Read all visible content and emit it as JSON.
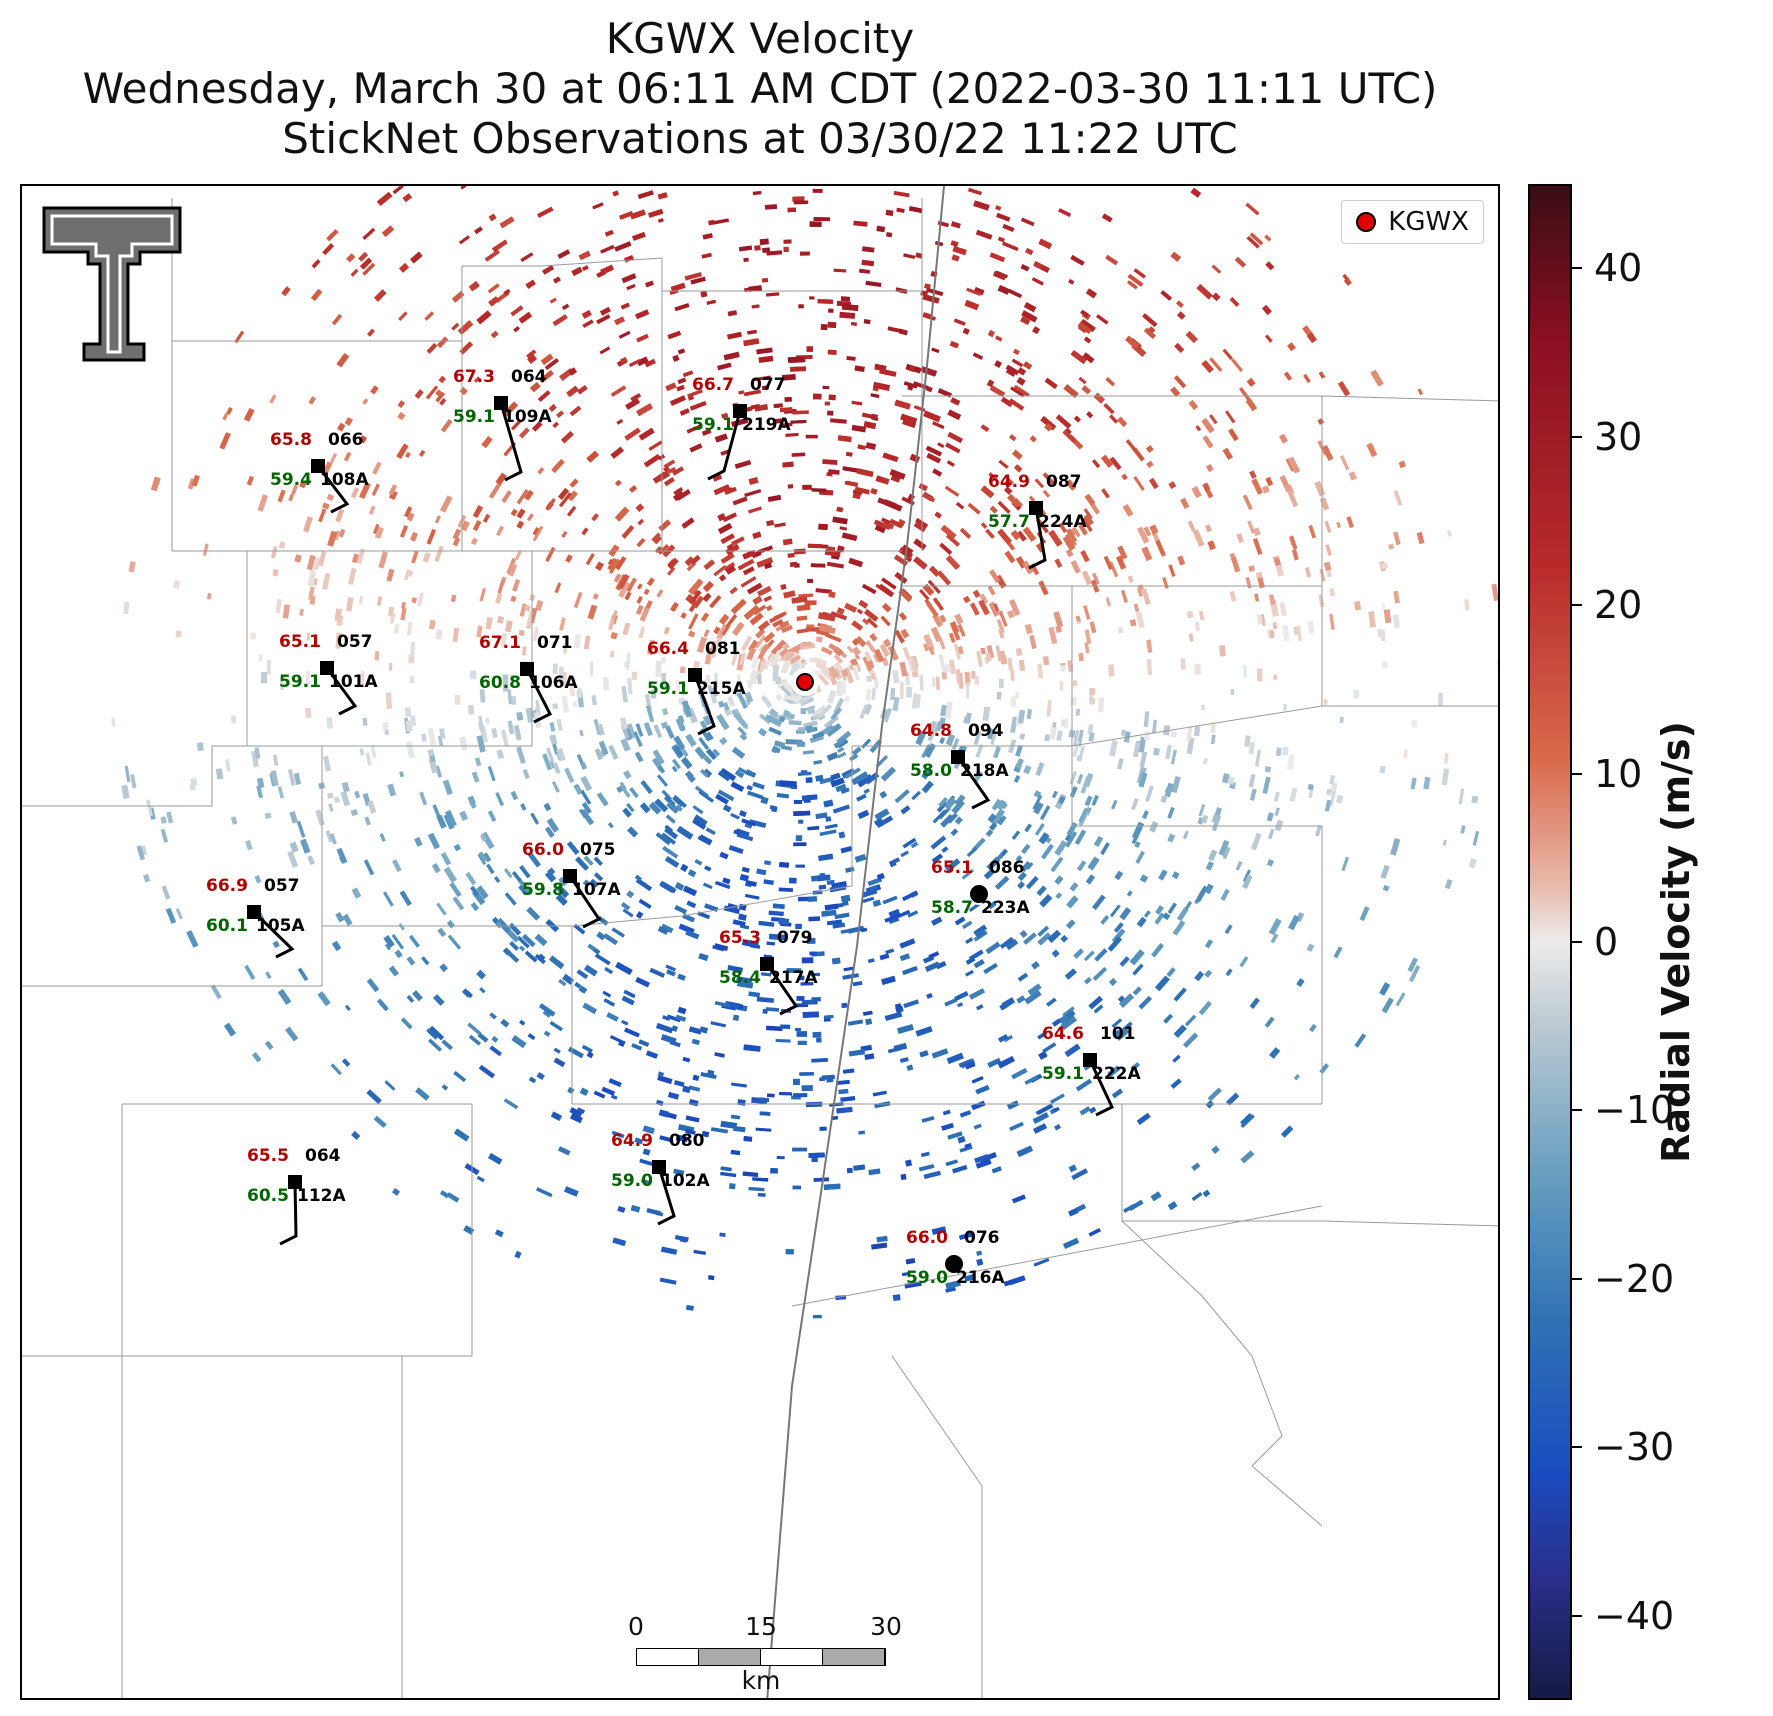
{
  "title_lines": [
    "KGWX Velocity",
    "Wednesday, March 30 at 06:11 AM CDT (2022-03-30 11:11 UTC)",
    "StickNet Observations at 03/30/22 11:22 UTC"
  ],
  "legend": {
    "label": "KGWX"
  },
  "colorbar": {
    "label": "Radial Velocity (m/s)",
    "ticks": [
      "40",
      "30",
      "20",
      "10",
      "0",
      "−10",
      "−20",
      "−30",
      "−40"
    ],
    "range": [
      -45,
      45
    ],
    "colors": {
      "high": "#3a0d14",
      "mid": "#ececec",
      "low": "#151a45"
    }
  },
  "scale_bar": {
    "labels": [
      "0",
      "15",
      "30"
    ],
    "unit": "km"
  },
  "logo": {
    "name": "texas-tech-double-t-logo"
  },
  "stations": [
    {
      "id": "109A",
      "temp": "67.3",
      "dew": "59.1",
      "dir": "064",
      "marker": "square"
    },
    {
      "id": "219A",
      "temp": "66.7",
      "dew": "59.1",
      "dir": "077",
      "marker": "square"
    },
    {
      "id": "108A",
      "temp": "65.8",
      "dew": "59.4",
      "dir": "066",
      "marker": "square"
    },
    {
      "id": "224A",
      "temp": "64.9",
      "dew": "57.7",
      "dir": "087",
      "marker": "square"
    },
    {
      "id": "101A",
      "temp": "65.1",
      "dew": "59.1",
      "dir": "057",
      "marker": "square"
    },
    {
      "id": "106A",
      "temp": "67.1",
      "dew": "60.8",
      "dir": "071",
      "marker": "square"
    },
    {
      "id": "215A",
      "temp": "66.4",
      "dew": "59.1",
      "dir": "081",
      "marker": "square"
    },
    {
      "id": "218A",
      "temp": "64.8",
      "dew": "58.0",
      "dir": "094",
      "marker": "square"
    },
    {
      "id": "107A",
      "temp": "66.0",
      "dew": "59.8",
      "dir": "075",
      "marker": "square"
    },
    {
      "id": "105A",
      "temp": "66.9",
      "dew": "60.1",
      "dir": "057",
      "marker": "square"
    },
    {
      "id": "223A",
      "temp": "65.1",
      "dew": "58.7",
      "dir": "086",
      "marker": "circle"
    },
    {
      "id": "217A",
      "temp": "65.3",
      "dew": "58.4",
      "dir": "079",
      "marker": "square"
    },
    {
      "id": "222A",
      "temp": "64.6",
      "dew": "59.1",
      "dir": "101",
      "marker": "square"
    },
    {
      "id": "102A",
      "temp": "64.9",
      "dew": "59.0",
      "dir": "080",
      "marker": "square"
    },
    {
      "id": "112A",
      "temp": "65.5",
      "dew": "60.5",
      "dir": "064",
      "marker": "square"
    },
    {
      "id": "216A",
      "temp": "66.0",
      "dew": "59.0",
      "dir": "076",
      "marker": "circle"
    }
  ]
}
